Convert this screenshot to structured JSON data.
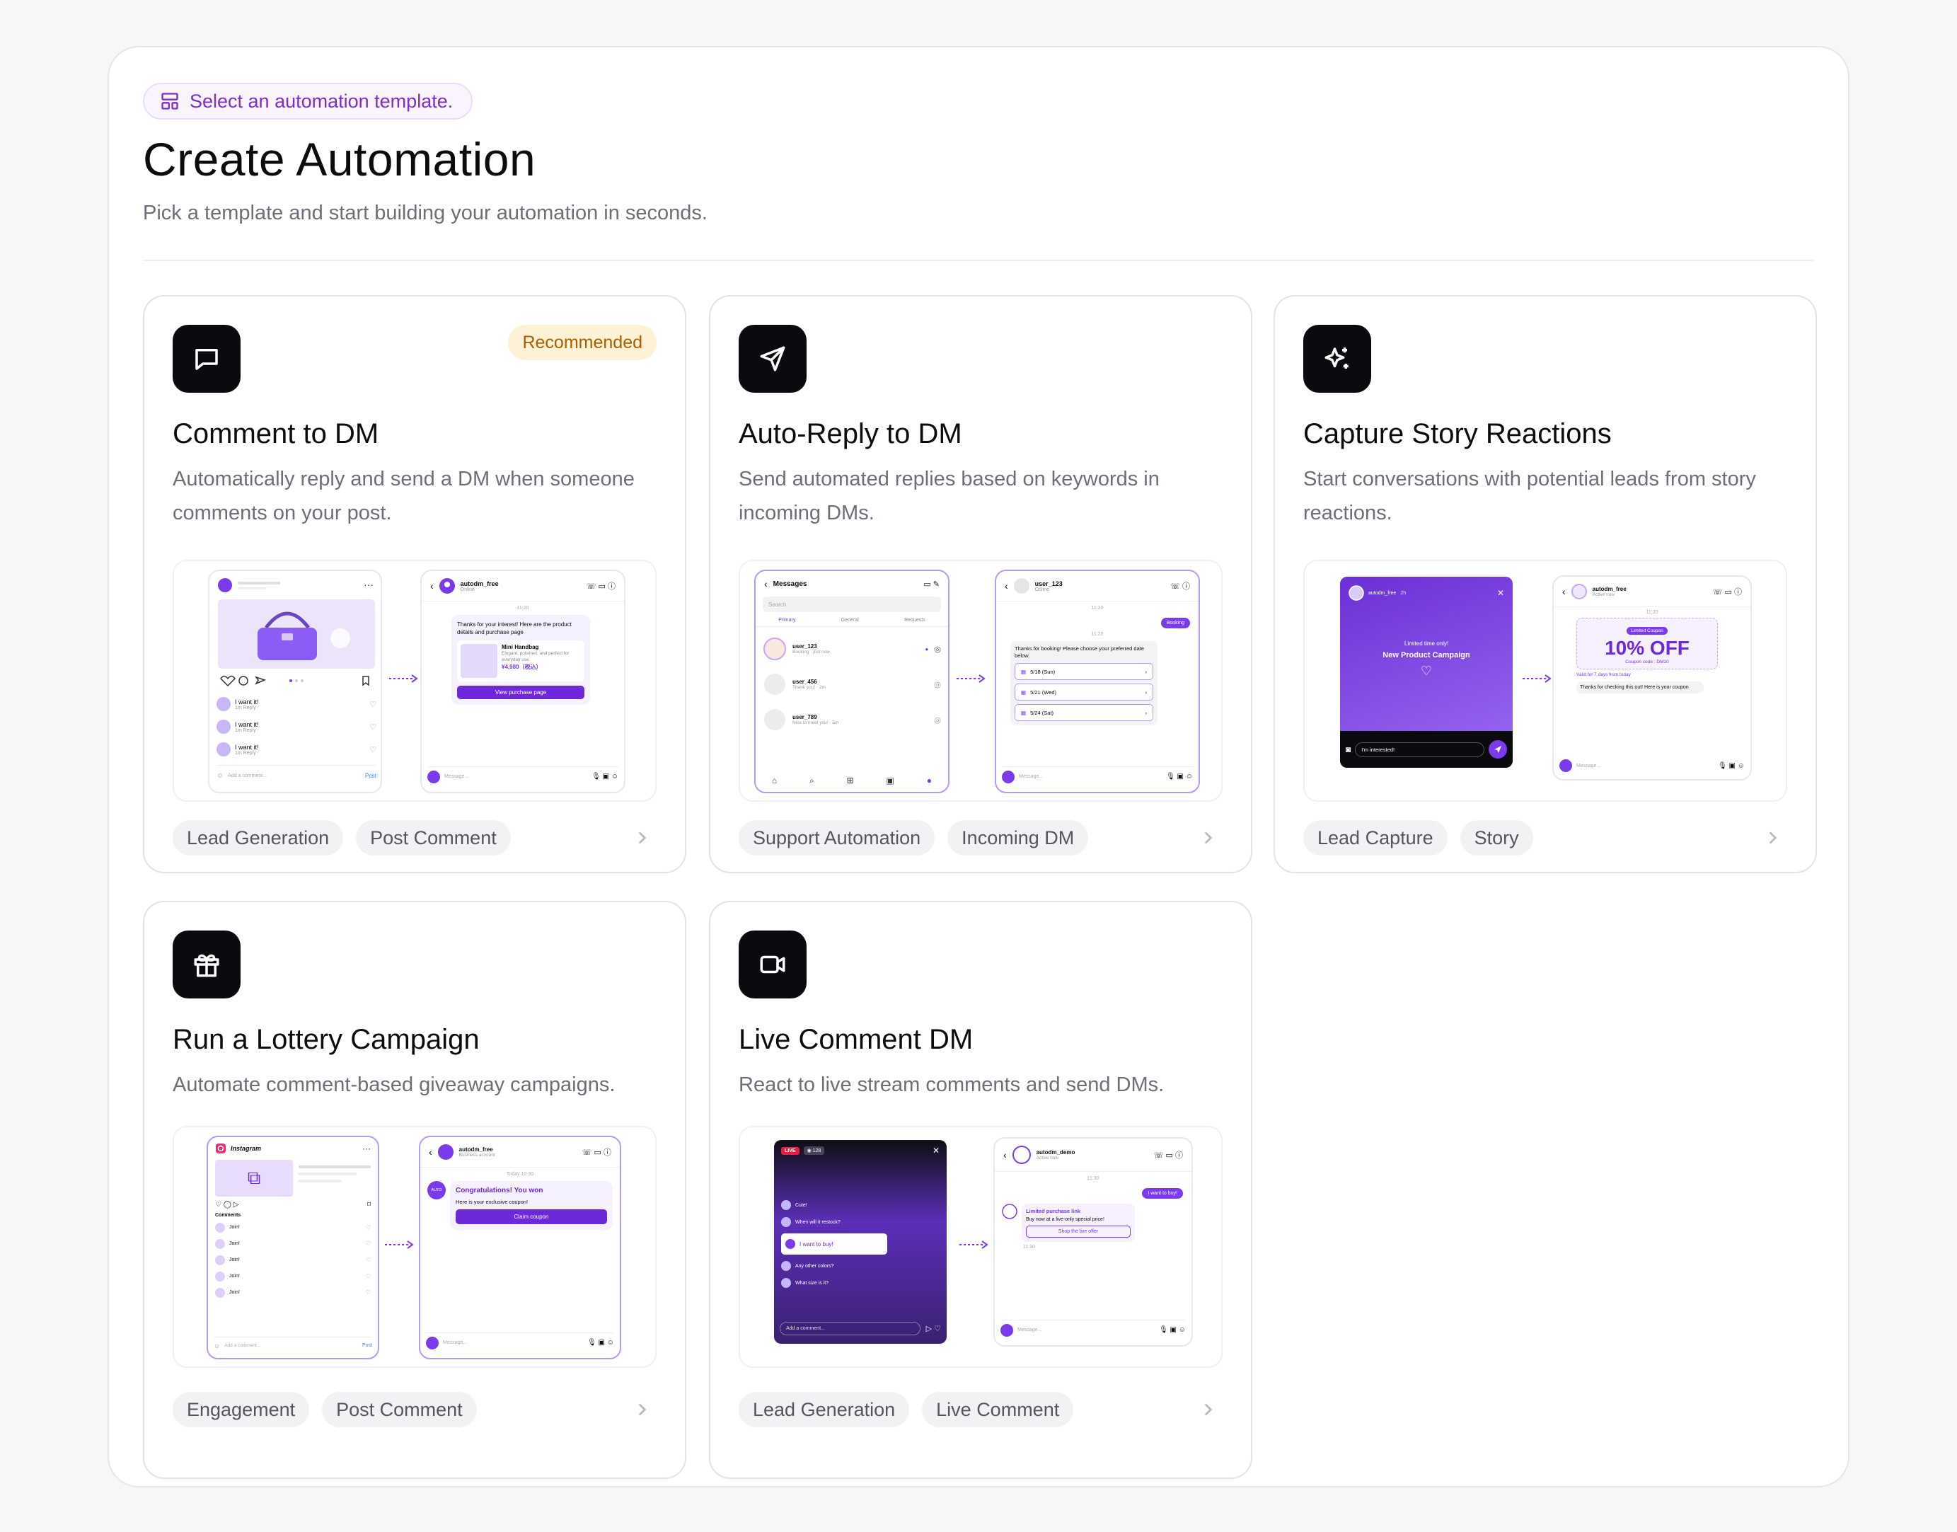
{
  "header": {
    "badge": "Select an automation template.",
    "title": "Create Automation",
    "subtitle": "Pick a template and start building your automation in seconds."
  },
  "cards": [
    {
      "title": "Comment to DM",
      "desc": "Automatically reply and send a DM when someone comments on your post.",
      "badge": "Recommended",
      "tags": [
        "Lead Generation",
        "Post Comment"
      ]
    },
    {
      "title": "Auto-Reply to DM",
      "desc": "Send automated replies based on keywords in incoming DMs.",
      "tags": [
        "Support Automation",
        "Incoming DM"
      ]
    },
    {
      "title": "Capture Story Reactions",
      "desc": "Start conversations with potential leads from story reactions.",
      "tags": [
        "Lead Capture",
        "Story"
      ]
    },
    {
      "title": "Run a Lottery Campaign",
      "desc": "Automate comment-based giveaway campaigns.",
      "tags": [
        "Engagement",
        "Post Comment"
      ]
    },
    {
      "title": "Live Comment DM",
      "desc": "React to live stream comments and send DMs.",
      "tags": [
        "Lead Generation",
        "Live Comment"
      ]
    }
  ],
  "previews": {
    "c1": {
      "account": "autodm_free",
      "status": "Online",
      "time": "11:20",
      "msg": "Thanks for your interest! Here are the product details and purchase page",
      "product": "Mini Handbag",
      "product_desc": "Elegant, polished, and perfect for everyday use.",
      "price": "¥4,980（税込）",
      "cta": "View purchase page",
      "comment": "I want it!",
      "meta": "1m Reply",
      "add": "Add a comment...",
      "post": "Post",
      "placeholder": "Message..."
    },
    "c2": {
      "inbox": "Messages",
      "search": "Search",
      "tabs": [
        "Primary",
        "General",
        "Requests"
      ],
      "users": [
        {
          "name": "user_123",
          "sub": "Booking · just now"
        },
        {
          "name": "user_456",
          "sub": "Thank you! · 2m"
        },
        {
          "name": "user_789",
          "sub": "Nice to meet you! · 5m"
        }
      ],
      "chat_user": "user_123",
      "chat_status": "Online",
      "time1": "11:20",
      "booking": "Booking",
      "time2": "11:20",
      "reply": "Thanks for booking! Please choose your preferred date below.",
      "dates": [
        "5/18 (Sun)",
        "5/21 (Wed)",
        "5/24 (Sat)"
      ],
      "placeholder": "Message..."
    },
    "c3": {
      "story_user": "autodm_free",
      "story_age": "2h",
      "promo_small": "Limited time only!",
      "promo": "New Product Campaign",
      "reply": "I'm interested!",
      "account": "autodm_free",
      "status": "Active now",
      "time": "11:20",
      "coupon_label": "Limited Coupon",
      "coupon_value": "10% OFF",
      "coupon_code": "Coupon code : DM10",
      "valid": "Valid for 7 days from today",
      "msg": "Thanks for checking this out! Here is your coupon",
      "placeholder": "Message..."
    },
    "c4": {
      "brand": "Instagram",
      "comments_label": "Comments",
      "comment": "Join!",
      "account": "autodm_free",
      "status": "Business account",
      "avatar": "AUTO",
      "time": "Today 12:30",
      "congrats": "Congratulations! You won",
      "coupon_msg": "Here is your exclusive coupon!",
      "cta": "Claim coupon",
      "add": "Add a comment...",
      "post": "Post",
      "placeholder": "Message..."
    },
    "c5": {
      "live": "LIVE",
      "viewers": "128",
      "comments": [
        "Cute!",
        "When will it restock?",
        "I want to buy!",
        "Any other colors?",
        "What size is it?"
      ],
      "add": "Add a comment...",
      "account": "autodm_demo",
      "status": "Active now",
      "time1": "11:30",
      "sent": "I want to buy!",
      "link_title": "Limited purchase link",
      "link_msg": "Buy now at a live-only special price!",
      "link_cta": "Shop the live offer",
      "time2": "11:30",
      "placeholder": "Message..."
    }
  },
  "colors": {
    "accent": "#7c3aed",
    "badge_bg": "#fdf1d6",
    "badge_text": "#a65f06"
  }
}
